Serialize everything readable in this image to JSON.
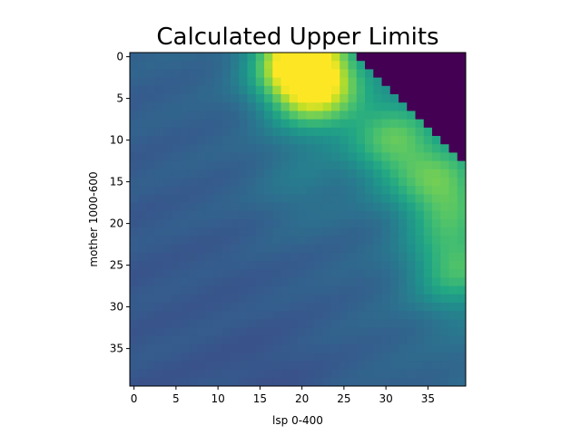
{
  "chart_data": {
    "type": "heatmap",
    "title": "Calculated Upper Limits",
    "xlabel": "lsp 0-400",
    "ylabel": "mother 1000-600",
    "xlim": [
      -0.5,
      39.5
    ],
    "ylim": [
      39.5,
      -0.5
    ],
    "rows": 40,
    "cols": 40,
    "x_ticks": [
      0,
      5,
      10,
      15,
      20,
      25,
      30,
      35
    ],
    "y_ticks": [
      0,
      5,
      10,
      15,
      20,
      25,
      30,
      35
    ],
    "colormap": "viridis",
    "masked_color": "#440154",
    "masked_region": "upper-right corner (above the diagonal col - row > 26, beginning at column 26 in row 0)",
    "grid": false,
    "colorbar": false,
    "values_note_units": "normalized 0-1 colormap intensity",
    "hotspots": [
      {
        "row": 0.5,
        "col": 19.5,
        "value": 0.98
      },
      {
        "row": 3.5,
        "col": 22.0,
        "value": 0.82
      },
      {
        "row": 10.0,
        "col": 31.0,
        "value": 0.72
      },
      {
        "row": 16.0,
        "col": 37.0,
        "value": 0.74
      },
      {
        "row": 25.0,
        "col": 38.5,
        "value": 0.7
      },
      {
        "row": 15.0,
        "col": 20.0,
        "value": 0.4
      },
      {
        "row": 27.0,
        "col": 9.0,
        "value": 0.28
      },
      {
        "row": 38.0,
        "col": 15.0,
        "value": 0.26
      },
      {
        "row": 34.0,
        "col": 1.0,
        "value": 0.28
      }
    ]
  }
}
